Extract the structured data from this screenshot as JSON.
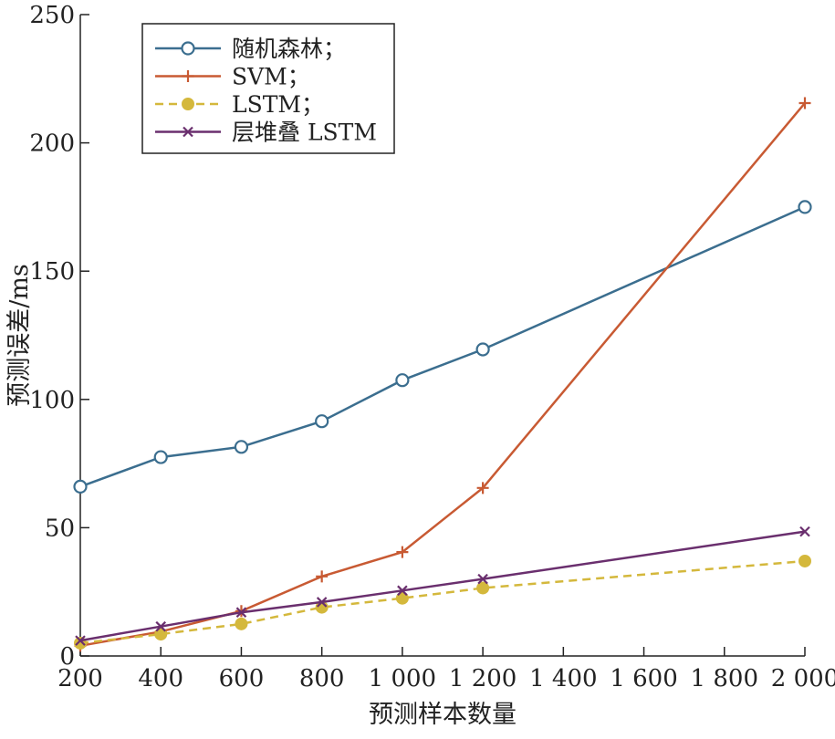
{
  "chart_data": {
    "type": "line",
    "xlabel": "预测样本数量",
    "ylabel": "预测误差/ms",
    "xlim": [
      200,
      2000
    ],
    "ylim": [
      0,
      250
    ],
    "x_ticks": [
      200,
      400,
      600,
      800,
      1000,
      1200,
      1400,
      1600,
      1800,
      2000
    ],
    "x_tick_labels": [
      "200",
      "400",
      "600",
      "800",
      "1 000",
      "1 200",
      "1 400",
      "1 600",
      "1 800",
      "2 000"
    ],
    "y_ticks": [
      0,
      50,
      100,
      150,
      200,
      250
    ],
    "y_tick_labels": [
      "0",
      "50",
      "100",
      "150",
      "200",
      "250"
    ],
    "grid": false,
    "legend_position": "top-left",
    "x": [
      200,
      400,
      600,
      800,
      1000,
      1200,
      2000
    ],
    "series": [
      {
        "name": "随机森林；",
        "marker": "circle",
        "line": "solid",
        "color": "#3b6e8f",
        "values": [
          66,
          77.5,
          81.5,
          91.5,
          107.5,
          119.5,
          175
        ]
      },
      {
        "name": "SVM；",
        "marker": "plus",
        "line": "solid",
        "color": "#c85a33",
        "values": [
          4,
          9.5,
          17.5,
          31,
          40.5,
          65.5,
          215.5
        ]
      },
      {
        "name": "LSTM；",
        "marker": "filled-circle",
        "line": "dashed",
        "color": "#d4b83c",
        "values": [
          5,
          8.5,
          12.5,
          19,
          22.5,
          26.5,
          37
        ]
      },
      {
        "name": "层堆叠 LSTM",
        "marker": "x",
        "line": "solid",
        "color": "#6a2f6e",
        "values": [
          6,
          11.5,
          17,
          21,
          25.5,
          30,
          48.5
        ]
      }
    ]
  }
}
